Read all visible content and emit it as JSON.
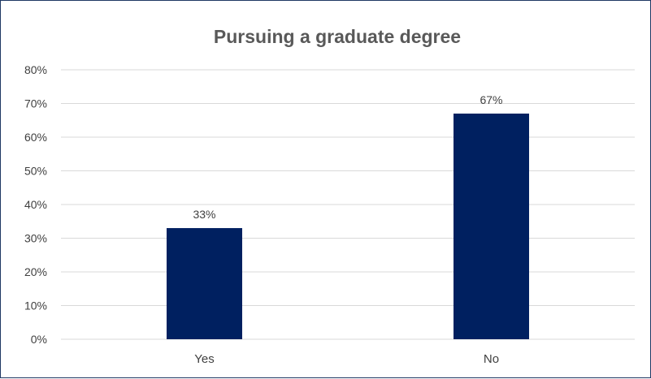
{
  "chart_data": {
    "type": "bar",
    "title": "Pursuing a graduate degree",
    "categories": [
      "Yes",
      "No"
    ],
    "values": [
      0.33,
      0.67
    ],
    "data_labels": [
      "33%",
      "67%"
    ],
    "ylim": [
      0,
      0.8
    ],
    "yticks": [
      {
        "value": 0.0,
        "label": "0%"
      },
      {
        "value": 0.1,
        "label": "10%"
      },
      {
        "value": 0.2,
        "label": "20%"
      },
      {
        "value": 0.3,
        "label": "30%"
      },
      {
        "value": 0.4,
        "label": "40%"
      },
      {
        "value": 0.5,
        "label": "50%"
      },
      {
        "value": 0.6,
        "label": "60%"
      },
      {
        "value": 0.7,
        "label": "70%"
      },
      {
        "value": 0.8,
        "label": "80%"
      }
    ],
    "xlabel": "",
    "ylabel": "",
    "grid": true,
    "legend": "none",
    "colors": {
      "bar": "#002060",
      "grid": "#d9d9d9",
      "border": "#1f3864"
    }
  }
}
